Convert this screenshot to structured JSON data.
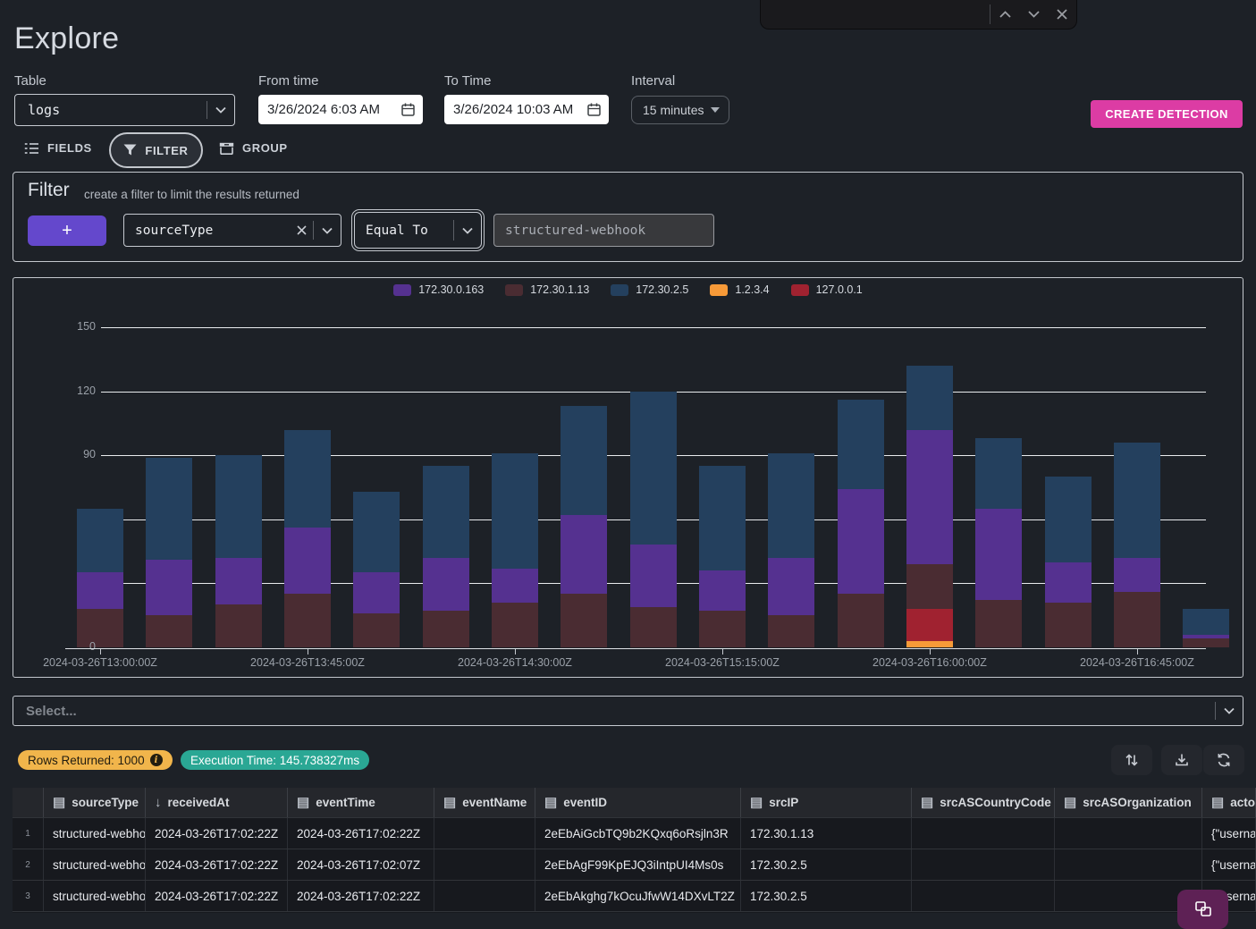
{
  "header": {
    "title": "Explore"
  },
  "find_bar": {
    "prev_icon": "chevron-up",
    "next_icon": "chevron-down",
    "close_icon": "x"
  },
  "controls": {
    "table": {
      "label": "Table",
      "value": "logs"
    },
    "from_time": {
      "label": "From time",
      "value": "3/26/2024 6:03 AM"
    },
    "to_time": {
      "label": "To Time",
      "value": "3/26/2024 10:03 AM"
    },
    "interval": {
      "label": "Interval",
      "value": "15 minutes"
    },
    "create_detection_label": "CREATE DETECTION"
  },
  "toolbar": {
    "fields_label": "FIELDS",
    "filter_label": "FILTER",
    "group_label": "GROUP"
  },
  "filter_panel": {
    "title": "Filter",
    "subtitle": "create a filter to limit the results returned",
    "add_button_label": "+",
    "field_value": "sourceType",
    "operator_value": "Equal To",
    "value_text": "structured-webhook"
  },
  "chart_data": {
    "type": "bar",
    "stacked": true,
    "grid": true,
    "legend_position": "top",
    "ylim": [
      0,
      150
    ],
    "yticks": [
      0,
      30,
      60,
      90,
      120,
      150
    ],
    "x": [
      "2024-03-26T13:00:00Z",
      "2024-03-26T13:15:00Z",
      "2024-03-26T13:30:00Z",
      "2024-03-26T13:45:00Z",
      "2024-03-26T14:00:00Z",
      "2024-03-26T14:15:00Z",
      "2024-03-26T14:30:00Z",
      "2024-03-26T14:45:00Z",
      "2024-03-26T15:00:00Z",
      "2024-03-26T15:15:00Z",
      "2024-03-26T15:30:00Z",
      "2024-03-26T15:45:00Z",
      "2024-03-26T16:00:00Z",
      "2024-03-26T16:15:00Z",
      "2024-03-26T16:30:00Z",
      "2024-03-26T16:45:00Z",
      "2024-03-26T17:00:00Z"
    ],
    "x_tick_labels": [
      "2024-03-26T13:00:00Z",
      "2024-03-26T13:45:00Z",
      "2024-03-26T14:30:00Z",
      "2024-03-26T15:15:00Z",
      "2024-03-26T16:00:00Z",
      "2024-03-26T16:45:00Z"
    ],
    "series": [
      {
        "name": "1.2.3.4",
        "color": "#f79a38",
        "values": [
          0,
          0,
          0,
          0,
          0,
          0,
          0,
          0,
          0,
          0,
          0,
          0,
          3,
          0,
          0,
          0,
          0
        ]
      },
      {
        "name": "127.0.0.1",
        "color": "#a02230",
        "values": [
          0,
          0,
          0,
          0,
          0,
          0,
          0,
          0,
          0,
          0,
          0,
          0,
          15,
          0,
          0,
          0,
          0
        ]
      },
      {
        "name": "172.30.1.13",
        "color": "#4a2c32",
        "values": [
          18,
          15,
          20,
          25,
          16,
          17,
          21,
          25,
          19,
          17,
          15,
          25,
          21,
          22,
          21,
          26,
          4
        ]
      },
      {
        "name": "172.30.0.163",
        "color": "#553190",
        "values": [
          17,
          26,
          22,
          31,
          19,
          25,
          16,
          37,
          29,
          19,
          27,
          49,
          63,
          43,
          19,
          16,
          2
        ]
      },
      {
        "name": "172.30.2.5",
        "color": "#24405e",
        "values": [
          30,
          48,
          48,
          46,
          38,
          43,
          54,
          51,
          72,
          49,
          49,
          42,
          30,
          33,
          40,
          54,
          12
        ]
      }
    ],
    "legend_order": [
      "172.30.0.163",
      "172.30.1.13",
      "172.30.2.5",
      "1.2.3.4",
      "127.0.0.1"
    ]
  },
  "select_row": {
    "placeholder": "Select..."
  },
  "results_bar": {
    "rows_returned": "Rows Returned: 1000",
    "execution_time": "Execution Time: 145.738327ms"
  },
  "table": {
    "columns": [
      {
        "label": "",
        "icon": "none"
      },
      {
        "label": "sourceType",
        "icon": "table"
      },
      {
        "label": "receivedAt",
        "icon": "sort-desc"
      },
      {
        "label": "eventTime",
        "icon": "table"
      },
      {
        "label": "eventName",
        "icon": "table"
      },
      {
        "label": "eventID",
        "icon": "table"
      },
      {
        "label": "srcIP",
        "icon": "table"
      },
      {
        "label": "srcASCountryCode",
        "icon": "table"
      },
      {
        "label": "srcASOrganization",
        "icon": "table"
      },
      {
        "label": "actor",
        "icon": "table"
      }
    ],
    "rows": [
      {
        "num": "1",
        "cells": [
          "structured-webhook",
          "2024-03-26T17:02:22Z",
          "2024-03-26T17:02:22Z",
          "",
          "2eEbAiGcbTQ9b2KQxq6oRsjln3R",
          "172.30.1.13",
          "",
          "",
          "{\"userna"
        ]
      },
      {
        "num": "2",
        "cells": [
          "structured-webhook",
          "2024-03-26T17:02:22Z",
          "2024-03-26T17:02:07Z",
          "",
          "2eEbAgF99KpEJQ3iIntpUI4Ms0s",
          "172.30.2.5",
          "",
          "",
          "{\"userna"
        ]
      },
      {
        "num": "3",
        "cells": [
          "structured-webhook",
          "2024-03-26T17:02:22Z",
          "2024-03-26T17:02:22Z",
          "",
          "2eEbAkghg7kOcuJfwW14DXvLT2Z",
          "172.30.2.5",
          "",
          "",
          "{\"userna"
        ]
      }
    ]
  },
  "colors": {
    "accent_pink": "#dc3ca4",
    "accent_purple": "#6448cc",
    "badge_amber": "#f1b54b",
    "badge_teal": "#2aa794",
    "fab_plum": "#5e2155"
  }
}
